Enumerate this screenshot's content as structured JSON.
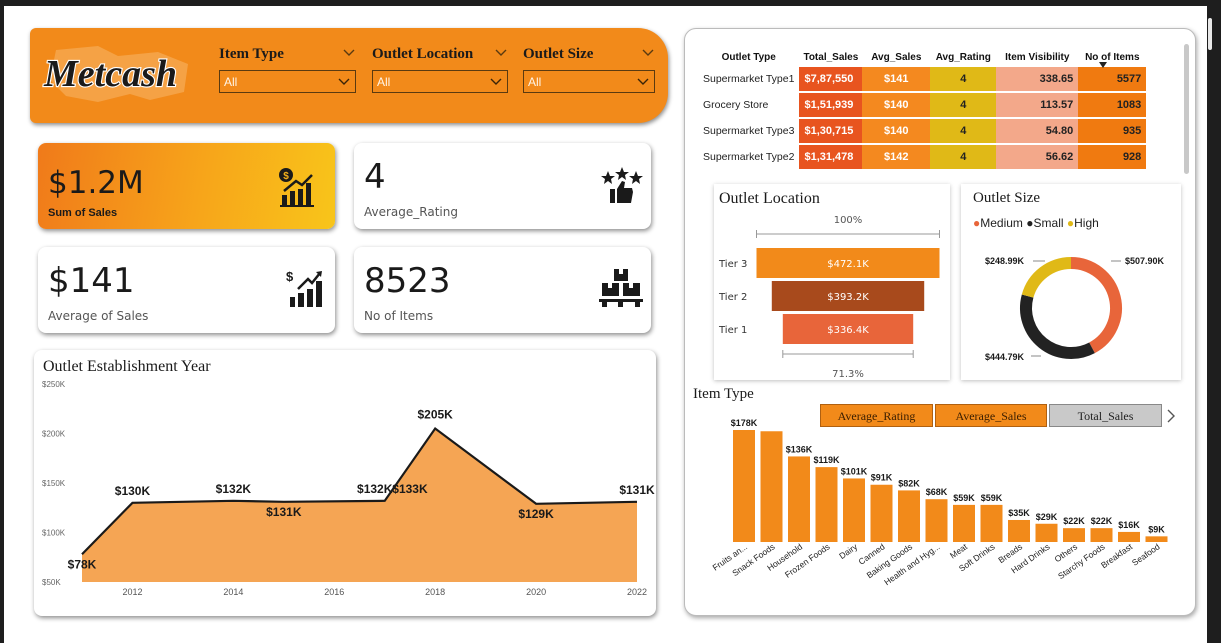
{
  "header": {
    "logo_text": "Metcash",
    "slicers": [
      {
        "label": "Item Type",
        "value": "All"
      },
      {
        "label": "Outlet Location",
        "value": "All"
      },
      {
        "label": "Outlet Size",
        "value": "All"
      }
    ]
  },
  "kpis": {
    "sales": {
      "value": "$1.2M",
      "label": "Sum of Sales",
      "icon": "money-growth-icon"
    },
    "rating": {
      "value": "4",
      "label": "Average_Rating",
      "icon": "stars-thumbs-up-icon"
    },
    "avg_sales": {
      "value": "$141",
      "label": "Average of Sales",
      "icon": "dollar-bar-chart-icon"
    },
    "items": {
      "value": "8523",
      "label": "No of Items",
      "icon": "boxes-pallet-icon"
    }
  },
  "colors": {
    "orange": "#f28a1a",
    "red": "#e8541f",
    "gold": "#e0b917",
    "salmon": "#f3a88a",
    "dark": "#222222"
  },
  "establishment": {
    "title": "Outlet Establishment Year",
    "chart_data": {
      "type": "area",
      "x": [
        2011,
        2012,
        2014,
        2015,
        2017,
        2018,
        2020,
        2022
      ],
      "values": [
        78,
        130,
        132,
        131,
        132,
        205,
        129,
        131
      ],
      "labels": [
        "$78K",
        "$130K",
        "$132K",
        "$131K",
        "$132K",
        "$205K",
        "$129K",
        "$131K"
      ],
      "extra_label": "$133K",
      "y_ticks": [
        "$250K",
        "$200K",
        "$150K",
        "$100K",
        "$50K"
      ],
      "x_ticks": [
        "2012",
        "2014",
        "2016",
        "2018",
        "2020",
        "2022"
      ],
      "ylim": [
        50,
        250
      ]
    }
  },
  "matrix": {
    "headers": [
      "Outlet Type",
      "Total_Sales",
      "Avg_Sales",
      "Avg_Rating",
      "Item Visibility",
      "No of Items"
    ],
    "rows": [
      [
        "Supermarket Type1",
        "$7,87,550",
        "$141",
        "4",
        "338.65",
        "5577"
      ],
      [
        "Grocery Store",
        "$1,51,939",
        "$140",
        "4",
        "113.57",
        "1083"
      ],
      [
        "Supermarket Type3",
        "$1,30,715",
        "$140",
        "4",
        "54.80",
        "935"
      ],
      [
        "Supermarket Type2",
        "$1,31,478",
        "$142",
        "4",
        "56.62",
        "928"
      ]
    ]
  },
  "location": {
    "title": "Outlet Location",
    "top_pct": "100%",
    "bottom_pct": "71.3%",
    "chart_data": {
      "type": "bar",
      "categories": [
        "Tier 3",
        "Tier 2",
        "Tier 1"
      ],
      "values": [
        472.1,
        393.2,
        336.4
      ],
      "labels": [
        "$472.1K",
        "$393.2K",
        "$336.4K"
      ],
      "colors": [
        "#f28a1a",
        "#a84a1c",
        "#e8653a"
      ]
    }
  },
  "size": {
    "title": "Outlet Size",
    "legend": [
      "Medium",
      "Small",
      "High"
    ],
    "chart_data": {
      "type": "pie",
      "categories": [
        "Medium",
        "Small",
        "High"
      ],
      "values": [
        507.9,
        444.79,
        248.99
      ],
      "labels": [
        "$507.90K",
        "$444.79K",
        "$248.99K"
      ],
      "colors": [
        "#e8653a",
        "#222222",
        "#e0b917"
      ]
    }
  },
  "item_type": {
    "title": "Item Type",
    "buttons": [
      "Average_Rating",
      "Average_Sales",
      "Total_Sales"
    ],
    "chart_data": {
      "type": "bar",
      "categories": [
        "Fruits an...",
        "Snack Foods",
        "Household",
        "Frozen Foods",
        "Dairy",
        "Canned",
        "Baking Goods",
        "Health and Hyg...",
        "Meat",
        "Soft Drinks",
        "Breads",
        "Hard Drinks",
        "Others",
        "Starchy Foods",
        "Breakfast",
        "Seafood"
      ],
      "values": [
        178,
        176,
        136,
        119,
        101,
        91,
        82,
        68,
        59,
        59,
        35,
        29,
        22,
        22,
        16,
        9
      ],
      "labels": [
        "$178K",
        "",
        "$136K",
        "$119K",
        "$101K",
        "$91K",
        "$82K",
        "$68K",
        "$59K",
        "$59K",
        "$35K",
        "$29K",
        "$22K",
        "$22K",
        "$16K",
        "$9K"
      ]
    }
  }
}
